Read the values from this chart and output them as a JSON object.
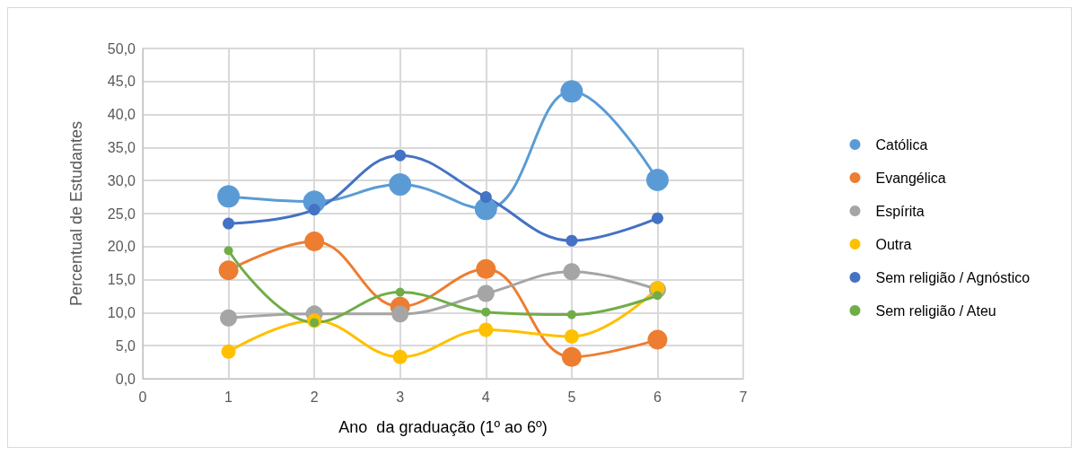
{
  "chart_data": {
    "type": "line",
    "xlabel": "Ano  da graduação (1º ao 6º)",
    "ylabel": "Percentual de Estudantes",
    "x": [
      1,
      2,
      3,
      4,
      5,
      6
    ],
    "series": [
      {
        "name": "Católica",
        "color": "#5b9bd5",
        "values": [
          27.6,
          26.8,
          29.4,
          25.7,
          43.5,
          30.1
        ]
      },
      {
        "name": "Evangélica",
        "color": "#ed7d31",
        "values": [
          16.4,
          20.8,
          10.9,
          16.6,
          3.3,
          5.9
        ]
      },
      {
        "name": "Espírita",
        "color": "#a5a5a5",
        "values": [
          9.2,
          9.8,
          9.8,
          12.9,
          16.2,
          13.5
        ]
      },
      {
        "name": "Outra",
        "color": "#ffc000",
        "values": [
          4.1,
          8.8,
          3.3,
          7.4,
          6.4,
          13.7
        ]
      },
      {
        "name": "Sem religião / Agnóstico",
        "color": "#4472c4",
        "values": [
          23.5,
          25.6,
          33.8,
          27.5,
          20.9,
          24.3
        ]
      },
      {
        "name": "Sem religião / Ateu",
        "color": "#70ad47",
        "values": [
          19.4,
          8.5,
          13.1,
          10.1,
          9.7,
          12.6
        ]
      }
    ],
    "xlim": [
      0,
      7
    ],
    "xticks": [
      0,
      1,
      2,
      3,
      4,
      5,
      6,
      7
    ],
    "ylim": [
      0,
      50
    ],
    "yticks": [
      {
        "value": 0,
        "label": "0,0"
      },
      {
        "value": 5,
        "label": "5,0"
      },
      {
        "value": 10,
        "label": "10,0"
      },
      {
        "value": 15,
        "label": "15,0"
      },
      {
        "value": 20,
        "label": "20,0"
      },
      {
        "value": 25,
        "label": "25,0"
      },
      {
        "value": 30,
        "label": "30,0"
      },
      {
        "value": 35,
        "label": "35,0"
      },
      {
        "value": 40,
        "label": "40,0"
      },
      {
        "value": 45,
        "label": "45,0"
      },
      {
        "value": 50,
        "label": "50,0"
      }
    ],
    "grid": true,
    "legend": "right",
    "marker": "circle",
    "line_style": "solid"
  }
}
